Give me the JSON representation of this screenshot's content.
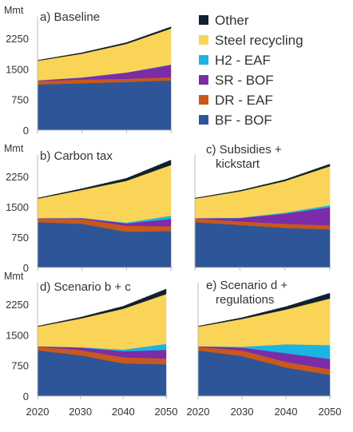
{
  "colors": {
    "bf_bof": "#2e5597",
    "dr_eaf": "#c8581d",
    "sr_bof": "#7b2ca6",
    "h2_eaf": "#1cb4e3",
    "steel_recycling": "#fad457",
    "other": "#0f2030",
    "axis": "#bbbbbb",
    "text": "#333333"
  },
  "chart_data": {
    "type": "area",
    "stacked": true,
    "unit_label": "Mmt",
    "x": [
      2020,
      2030,
      2040,
      2050
    ],
    "xticks": [
      "2020",
      "2030",
      "2040",
      "2050"
    ],
    "ylim": [
      0,
      2700
    ],
    "yticks": [
      "0",
      "750",
      "1500",
      "2250"
    ],
    "legend": {
      "placement": "top-right",
      "entries": [
        "Other",
        "Steel recycling",
        "H2 - EAF",
        "SR - BOF",
        "DR - EAF",
        "BF - BOF"
      ]
    },
    "panels": [
      {
        "title": "a) Baseline",
        "series": [
          {
            "name": "BF - BOF",
            "values": [
              1120,
              1150,
              1180,
              1220
            ]
          },
          {
            "name": "DR - EAF",
            "values": [
              90,
              90,
              80,
              80
            ]
          },
          {
            "name": "SR - BOF",
            "values": [
              10,
              50,
              150,
              300
            ]
          },
          {
            "name": "H2 - EAF",
            "values": [
              0,
              5,
              5,
              10
            ]
          },
          {
            "name": "Steel recycling",
            "values": [
              480,
              580,
              700,
              880
            ]
          },
          {
            "name": "Other",
            "values": [
              10,
              20,
              30,
              40
            ]
          }
        ]
      },
      {
        "title": "b) Carbon tax",
        "series": [
          {
            "name": "BF - BOF",
            "values": [
              1120,
              1080,
              880,
              900
            ]
          },
          {
            "name": "DR - EAF",
            "values": [
              90,
              120,
              150,
              120
            ]
          },
          {
            "name": "SR - BOF",
            "values": [
              10,
              20,
              60,
              180
            ]
          },
          {
            "name": "H2 - EAF",
            "values": [
              0,
              5,
              20,
              80
            ]
          },
          {
            "name": "Steel recycling",
            "values": [
              480,
              690,
              1030,
              1250
            ]
          },
          {
            "name": "Other",
            "values": [
              10,
              30,
              60,
              120
            ]
          }
        ]
      },
      {
        "title": "c) Subsidies + kickstart",
        "series": [
          {
            "name": "BF - BOF",
            "values": [
              1120,
              1050,
              980,
              940
            ]
          },
          {
            "name": "DR - EAF",
            "values": [
              90,
              90,
              100,
              100
            ]
          },
          {
            "name": "SR - BOF",
            "values": [
              10,
              80,
              250,
              450
            ]
          },
          {
            "name": "H2 - EAF",
            "values": [
              0,
              10,
              25,
              50
            ]
          },
          {
            "name": "Steel recycling",
            "values": [
              480,
              650,
              780,
              960
            ]
          },
          {
            "name": "Other",
            "values": [
              10,
              20,
              30,
              50
            ]
          }
        ]
      },
      {
        "title": "d) Scenario b + c",
        "series": [
          {
            "name": "BF - BOF",
            "values": [
              1120,
              1000,
              800,
              780
            ]
          },
          {
            "name": "DR - EAF",
            "values": [
              90,
              130,
              150,
              140
            ]
          },
          {
            "name": "SR - BOF",
            "values": [
              10,
              60,
              150,
              210
            ]
          },
          {
            "name": "H2 - EAF",
            "values": [
              0,
              10,
              40,
              150
            ]
          },
          {
            "name": "Steel recycling",
            "values": [
              480,
              700,
              1000,
              1220
            ]
          },
          {
            "name": "Other",
            "values": [
              10,
              30,
              60,
              120
            ]
          }
        ]
      },
      {
        "title": "e) Scenario d + regulations",
        "series": [
          {
            "name": "BF - BOF",
            "values": [
              1120,
              980,
              700,
              520
            ]
          },
          {
            "name": "DR - EAF",
            "values": [
              90,
              140,
              140,
              140
            ]
          },
          {
            "name": "SR - BOF",
            "values": [
              10,
              70,
              210,
              250
            ]
          },
          {
            "name": "H2 - EAF",
            "values": [
              0,
              20,
              220,
              340
            ]
          },
          {
            "name": "Steel recycling",
            "values": [
              480,
              680,
              850,
              1140
            ]
          },
          {
            "name": "Other",
            "values": [
              10,
              30,
              70,
              130
            ]
          }
        ]
      }
    ]
  }
}
